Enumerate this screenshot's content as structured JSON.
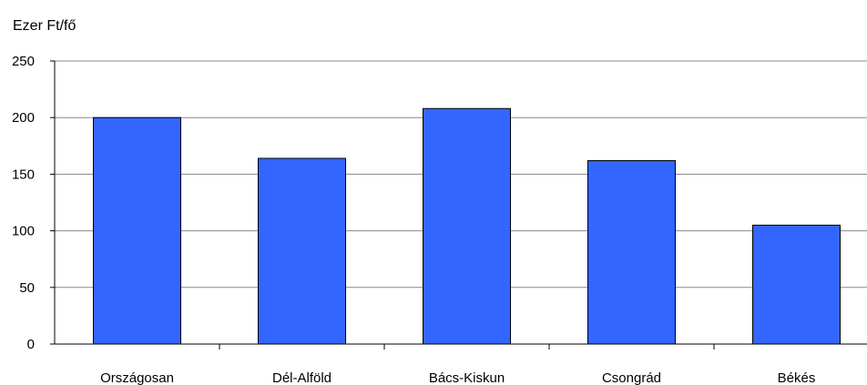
{
  "chart_data": {
    "type": "bar",
    "ylabel": "Ezer Ft/fő",
    "categories": [
      "Országosan",
      "Dél-Alföld",
      "Bács-Kiskun",
      "Csongrád",
      "Békés"
    ],
    "values": [
      200,
      164,
      208,
      162,
      105
    ],
    "ylim": [
      0,
      250
    ],
    "yticks": [
      0,
      50,
      100,
      150,
      200,
      250
    ],
    "grid": true,
    "legend": "none",
    "colors": {
      "bar": "#3366ff",
      "bar_outline": "#000000",
      "grid": "#888888",
      "axis": "#000000"
    }
  }
}
